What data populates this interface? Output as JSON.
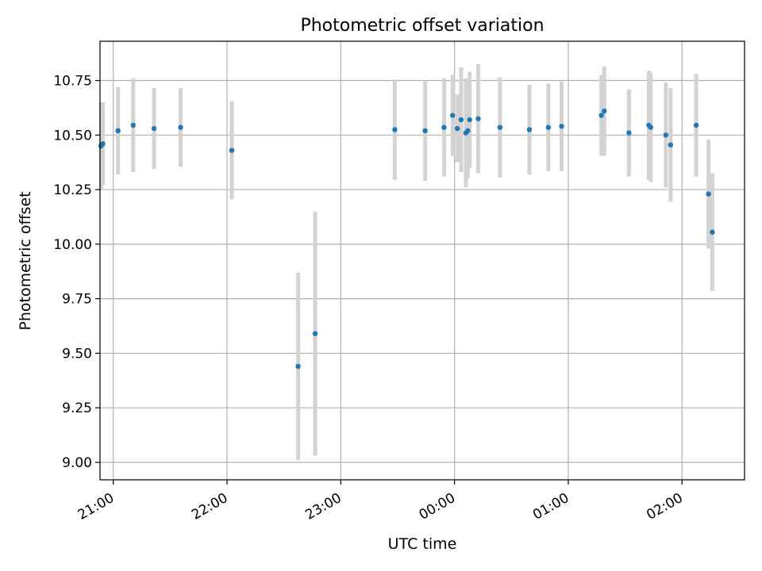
{
  "chart_data": {
    "type": "scatter",
    "title": "Photometric offset variation",
    "xlabel": "UTC time",
    "ylabel": "Photometric offset",
    "xlim": [
      "20:53",
      "02:33"
    ],
    "ylim": [
      8.92,
      10.93
    ],
    "grid": true,
    "x_ticks": [
      "21:00",
      "22:00",
      "23:00",
      "00:00",
      "01:00",
      "02:00"
    ],
    "y_ticks": [
      "9.00",
      "9.25",
      "9.50",
      "9.75",
      "10.00",
      "10.25",
      "10.50",
      "10.75"
    ],
    "colors": {
      "point": "#1f77b4",
      "errorbar": "#d3d3d3",
      "grid": "#b0b0b0"
    },
    "series": [
      {
        "points": [
          {
            "x": "20:53:30",
            "y": 10.45,
            "err": 0.2
          },
          {
            "x": "20:54:30",
            "y": 10.46,
            "err": 0.19
          },
          {
            "x": "21:02:30",
            "y": 10.52,
            "err": 0.2
          },
          {
            "x": "21:10:30",
            "y": 10.545,
            "err": 0.215
          },
          {
            "x": "21:21:30",
            "y": 10.53,
            "err": 0.185
          },
          {
            "x": "21:35:30",
            "y": 10.535,
            "err": 0.18
          },
          {
            "x": "22:02:30",
            "y": 10.43,
            "err": 0.225
          },
          {
            "x": "22:37:30",
            "y": 9.44,
            "err": 0.43
          },
          {
            "x": "22:46:30",
            "y": 9.59,
            "err": 0.56
          },
          {
            "x": "23:28:30",
            "y": 10.525,
            "err": 0.23
          },
          {
            "x": "23:44:30",
            "y": 10.52,
            "err": 0.23
          },
          {
            "x": "23:54:30",
            "y": 10.535,
            "err": 0.225
          },
          {
            "x": "23:59:00",
            "y": 10.59,
            "err": 0.185
          },
          {
            "x": "00:01:30",
            "y": 10.53,
            "err": 0.155
          },
          {
            "x": "00:03:30",
            "y": 10.57,
            "err": 0.24
          },
          {
            "x": "00:06:00",
            "y": 10.51,
            "err": 0.25
          },
          {
            "x": "00:07:00",
            "y": 10.52,
            "err": 0.22
          },
          {
            "x": "00:08:00",
            "y": 10.57,
            "err": 0.22
          },
          {
            "x": "00:12:30",
            "y": 10.575,
            "err": 0.25
          },
          {
            "x": "00:24:00",
            "y": 10.535,
            "err": 0.23
          },
          {
            "x": "00:39:30",
            "y": 10.525,
            "err": 0.205
          },
          {
            "x": "00:49:30",
            "y": 10.535,
            "err": 0.2
          },
          {
            "x": "00:56:30",
            "y": 10.54,
            "err": 0.205
          },
          {
            "x": "01:17:30",
            "y": 10.59,
            "err": 0.185
          },
          {
            "x": "01:19:00",
            "y": 10.61,
            "err": 0.205
          },
          {
            "x": "01:32:00",
            "y": 10.51,
            "err": 0.2
          },
          {
            "x": "01:42:30",
            "y": 10.545,
            "err": 0.25
          },
          {
            "x": "01:43:30",
            "y": 10.535,
            "err": 0.25
          },
          {
            "x": "01:51:30",
            "y": 10.5,
            "err": 0.24
          },
          {
            "x": "01:54:00",
            "y": 10.455,
            "err": 0.26
          },
          {
            "x": "02:07:30",
            "y": 10.545,
            "err": 0.235
          },
          {
            "x": "02:14:00",
            "y": 10.23,
            "err": 0.25
          },
          {
            "x": "02:16:00",
            "y": 10.055,
            "err": 0.27
          }
        ]
      }
    ]
  }
}
